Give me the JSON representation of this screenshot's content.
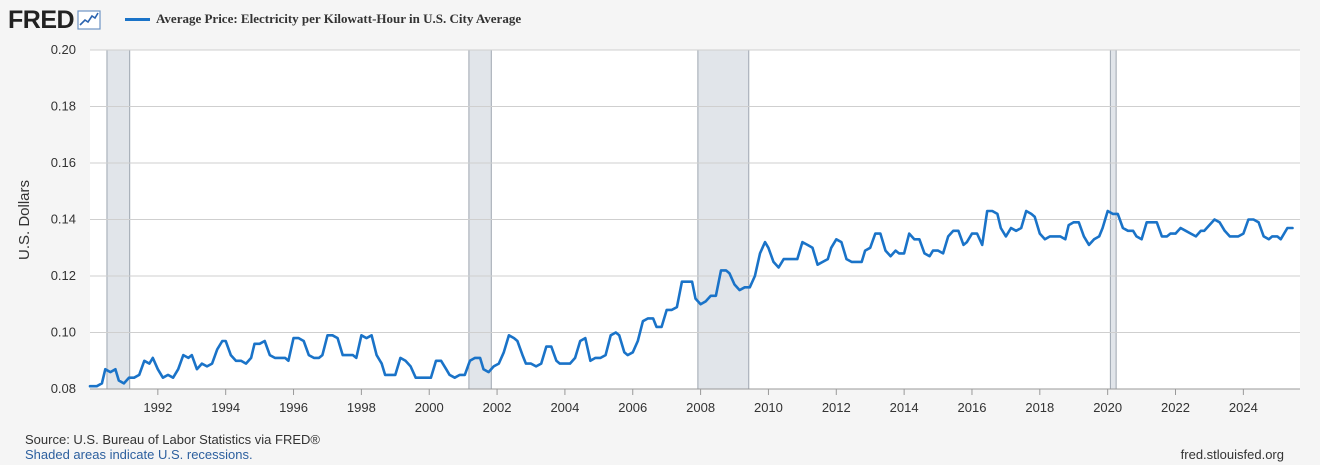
{
  "header": {
    "logo_text": "FRED",
    "logo_icon": "line-chart-icon",
    "legend_label": "Average Price: Electricity per Kilowatt-Hour in U.S. City Average",
    "series_color": "#1a73c8"
  },
  "footer": {
    "source": "U.S. Bureau of Labor Statistics via FRED®",
    "source_prefix": "Source: ",
    "recession_note": "Shaded areas indicate U.S. recessions.",
    "site": "fred.stlouisfed.org"
  },
  "chart_data": {
    "type": "line",
    "title": "Average Price: Electricity per Kilowatt-Hour in U.S. City Average",
    "xlabel": "",
    "ylabel": "U.S. Dollars",
    "xlim": [
      1990.0,
      2025.67
    ],
    "ylim": [
      0.08,
      0.2
    ],
    "x_ticks": [
      "1992",
      "1994",
      "1996",
      "1998",
      "2000",
      "2002",
      "2004",
      "2006",
      "2008",
      "2010",
      "2012",
      "2014",
      "2016",
      "2018",
      "2020",
      "2022",
      "2024"
    ],
    "y_ticks": [
      "0.08",
      "0.10",
      "0.12",
      "0.14",
      "0.16",
      "0.18",
      "0.20"
    ],
    "grid": true,
    "recessions": [
      [
        1990.5,
        1991.17
      ],
      [
        2001.17,
        2001.83
      ],
      [
        2007.92,
        2009.42
      ],
      [
        2020.08,
        2020.25
      ]
    ],
    "series": [
      {
        "name": "Average Price: Electricity per Kilowatt-Hour in U.S. City Average",
        "color": "#1a73c8",
        "points": [
          [
            1990.0,
            0.081
          ],
          [
            1990.2,
            0.081
          ],
          [
            1990.35,
            0.082
          ],
          [
            1990.45,
            0.087
          ],
          [
            1990.6,
            0.086
          ],
          [
            1990.75,
            0.087
          ],
          [
            1990.85,
            0.083
          ],
          [
            1991.0,
            0.082
          ],
          [
            1991.15,
            0.084
          ],
          [
            1991.3,
            0.084
          ],
          [
            1991.45,
            0.085
          ],
          [
            1991.6,
            0.09
          ],
          [
            1991.75,
            0.089
          ],
          [
            1991.85,
            0.091
          ],
          [
            1992.0,
            0.087
          ],
          [
            1992.15,
            0.084
          ],
          [
            1992.3,
            0.085
          ],
          [
            1992.45,
            0.084
          ],
          [
            1992.6,
            0.087
          ],
          [
            1992.75,
            0.092
          ],
          [
            1992.9,
            0.091
          ],
          [
            1993.0,
            0.092
          ],
          [
            1993.15,
            0.087
          ],
          [
            1993.3,
            0.089
          ],
          [
            1993.45,
            0.088
          ],
          [
            1993.6,
            0.089
          ],
          [
            1993.75,
            0.094
          ],
          [
            1993.9,
            0.097
          ],
          [
            1994.0,
            0.097
          ],
          [
            1994.15,
            0.092
          ],
          [
            1994.3,
            0.09
          ],
          [
            1994.45,
            0.09
          ],
          [
            1994.6,
            0.089
          ],
          [
            1994.75,
            0.091
          ],
          [
            1994.85,
            0.096
          ],
          [
            1995.0,
            0.096
          ],
          [
            1995.15,
            0.097
          ],
          [
            1995.3,
            0.092
          ],
          [
            1995.45,
            0.091
          ],
          [
            1995.6,
            0.091
          ],
          [
            1995.75,
            0.091
          ],
          [
            1995.85,
            0.09
          ],
          [
            1996.0,
            0.098
          ],
          [
            1996.15,
            0.098
          ],
          [
            1996.3,
            0.097
          ],
          [
            1996.45,
            0.092
          ],
          [
            1996.6,
            0.091
          ],
          [
            1996.75,
            0.091
          ],
          [
            1996.85,
            0.092
          ],
          [
            1997.0,
            0.099
          ],
          [
            1997.15,
            0.099
          ],
          [
            1997.3,
            0.098
          ],
          [
            1997.45,
            0.092
          ],
          [
            1997.6,
            0.092
          ],
          [
            1997.75,
            0.092
          ],
          [
            1997.85,
            0.091
          ],
          [
            1998.0,
            0.099
          ],
          [
            1998.15,
            0.098
          ],
          [
            1998.3,
            0.099
          ],
          [
            1998.45,
            0.092
          ],
          [
            1998.6,
            0.089
          ],
          [
            1998.7,
            0.085
          ],
          [
            1998.85,
            0.085
          ],
          [
            1999.0,
            0.085
          ],
          [
            1999.15,
            0.091
          ],
          [
            1999.3,
            0.09
          ],
          [
            1999.45,
            0.088
          ],
          [
            1999.6,
            0.084
          ],
          [
            1999.75,
            0.084
          ],
          [
            1999.9,
            0.084
          ],
          [
            2000.05,
            0.084
          ],
          [
            2000.2,
            0.09
          ],
          [
            2000.35,
            0.09
          ],
          [
            2000.5,
            0.087
          ],
          [
            2000.6,
            0.085
          ],
          [
            2000.75,
            0.084
          ],
          [
            2000.9,
            0.085
          ],
          [
            2001.05,
            0.085
          ],
          [
            2001.2,
            0.09
          ],
          [
            2001.35,
            0.091
          ],
          [
            2001.5,
            0.091
          ],
          [
            2001.6,
            0.087
          ],
          [
            2001.75,
            0.086
          ],
          [
            2001.9,
            0.088
          ],
          [
            2002.05,
            0.089
          ],
          [
            2002.2,
            0.093
          ],
          [
            2002.35,
            0.099
          ],
          [
            2002.5,
            0.098
          ],
          [
            2002.6,
            0.097
          ],
          [
            2002.75,
            0.092
          ],
          [
            2002.85,
            0.089
          ],
          [
            2003.0,
            0.089
          ],
          [
            2003.15,
            0.088
          ],
          [
            2003.3,
            0.089
          ],
          [
            2003.45,
            0.095
          ],
          [
            2003.6,
            0.095
          ],
          [
            2003.75,
            0.09
          ],
          [
            2003.85,
            0.089
          ],
          [
            2004.0,
            0.089
          ],
          [
            2004.15,
            0.089
          ],
          [
            2004.3,
            0.091
          ],
          [
            2004.45,
            0.097
          ],
          [
            2004.6,
            0.098
          ],
          [
            2004.75,
            0.09
          ],
          [
            2004.9,
            0.091
          ],
          [
            2005.05,
            0.091
          ],
          [
            2005.2,
            0.092
          ],
          [
            2005.35,
            0.099
          ],
          [
            2005.5,
            0.1
          ],
          [
            2005.6,
            0.099
          ],
          [
            2005.75,
            0.093
          ],
          [
            2005.85,
            0.092
          ],
          [
            2006.0,
            0.093
          ],
          [
            2006.15,
            0.097
          ],
          [
            2006.3,
            0.104
          ],
          [
            2006.45,
            0.105
          ],
          [
            2006.6,
            0.105
          ],
          [
            2006.7,
            0.102
          ],
          [
            2006.85,
            0.102
          ],
          [
            2007.0,
            0.108
          ],
          [
            2007.15,
            0.108
          ],
          [
            2007.3,
            0.109
          ],
          [
            2007.45,
            0.118
          ],
          [
            2007.6,
            0.118
          ],
          [
            2007.75,
            0.118
          ],
          [
            2007.85,
            0.112
          ],
          [
            2008.0,
            0.11
          ],
          [
            2008.15,
            0.111
          ],
          [
            2008.3,
            0.113
          ],
          [
            2008.45,
            0.113
          ],
          [
            2008.6,
            0.122
          ],
          [
            2008.75,
            0.122
          ],
          [
            2008.85,
            0.121
          ],
          [
            2009.0,
            0.117
          ],
          [
            2009.15,
            0.115
          ],
          [
            2009.3,
            0.116
          ],
          [
            2009.45,
            0.116
          ],
          [
            2009.6,
            0.12
          ],
          [
            2009.75,
            0.128
          ],
          [
            2009.9,
            0.132
          ],
          [
            2010.0,
            0.13
          ],
          [
            2010.15,
            0.125
          ],
          [
            2010.3,
            0.123
          ],
          [
            2010.45,
            0.126
          ],
          [
            2010.6,
            0.126
          ],
          [
            2010.75,
            0.126
          ],
          [
            2010.85,
            0.126
          ],
          [
            2011.0,
            0.132
          ],
          [
            2011.15,
            0.131
          ],
          [
            2011.3,
            0.13
          ],
          [
            2011.45,
            0.124
          ],
          [
            2011.6,
            0.125
          ],
          [
            2011.75,
            0.126
          ],
          [
            2011.85,
            0.13
          ],
          [
            2012.0,
            0.133
          ],
          [
            2012.15,
            0.132
          ],
          [
            2012.3,
            0.126
          ],
          [
            2012.45,
            0.125
          ],
          [
            2012.6,
            0.125
          ],
          [
            2012.75,
            0.125
          ],
          [
            2012.85,
            0.129
          ],
          [
            2013.0,
            0.13
          ],
          [
            2013.15,
            0.135
          ],
          [
            2013.3,
            0.135
          ],
          [
            2013.45,
            0.129
          ],
          [
            2013.6,
            0.127
          ],
          [
            2013.75,
            0.129
          ],
          [
            2013.85,
            0.128
          ],
          [
            2014.0,
            0.128
          ],
          [
            2014.15,
            0.135
          ],
          [
            2014.3,
            0.133
          ],
          [
            2014.45,
            0.133
          ],
          [
            2014.6,
            0.128
          ],
          [
            2014.75,
            0.127
          ],
          [
            2014.85,
            0.129
          ],
          [
            2015.0,
            0.129
          ],
          [
            2015.15,
            0.128
          ],
          [
            2015.3,
            0.134
          ],
          [
            2015.45,
            0.136
          ],
          [
            2015.6,
            0.136
          ],
          [
            2015.75,
            0.131
          ],
          [
            2015.85,
            0.132
          ],
          [
            2016.0,
            0.135
          ],
          [
            2016.15,
            0.135
          ],
          [
            2016.3,
            0.131
          ],
          [
            2016.45,
            0.143
          ],
          [
            2016.6,
            0.143
          ],
          [
            2016.75,
            0.142
          ],
          [
            2016.85,
            0.137
          ],
          [
            2017.0,
            0.134
          ],
          [
            2017.15,
            0.137
          ],
          [
            2017.3,
            0.136
          ],
          [
            2017.45,
            0.137
          ],
          [
            2017.6,
            0.143
          ],
          [
            2017.75,
            0.142
          ],
          [
            2017.85,
            0.141
          ],
          [
            2018.0,
            0.135
          ],
          [
            2018.15,
            0.133
          ],
          [
            2018.3,
            0.134
          ],
          [
            2018.45,
            0.134
          ],
          [
            2018.6,
            0.134
          ],
          [
            2018.75,
            0.133
          ],
          [
            2018.85,
            0.138
          ],
          [
            2019.0,
            0.139
          ],
          [
            2019.15,
            0.139
          ],
          [
            2019.3,
            0.134
          ],
          [
            2019.45,
            0.131
          ],
          [
            2019.6,
            0.133
          ],
          [
            2019.75,
            0.134
          ],
          [
            2019.85,
            0.137
          ],
          [
            2020.0,
            0.143
          ],
          [
            2020.15,
            0.142
          ],
          [
            2020.3,
            0.142
          ],
          [
            2020.45,
            0.137
          ],
          [
            2020.6,
            0.136
          ],
          [
            2020.75,
            0.136
          ],
          [
            2020.85,
            0.134
          ],
          [
            2021.0,
            0.133
          ],
          [
            2021.15,
            0.139
          ],
          [
            2021.3,
            0.139
          ],
          [
            2021.45,
            0.139
          ],
          [
            2021.6,
            0.134
          ],
          [
            2021.75,
            0.134
          ],
          [
            2021.85,
            0.135
          ],
          [
            2022.0,
            0.135
          ],
          [
            2022.15,
            0.137
          ],
          [
            2022.3,
            0.136
          ],
          [
            2022.45,
            0.135
          ],
          [
            2022.6,
            0.134
          ],
          [
            2022.75,
            0.136
          ],
          [
            2022.85,
            0.136
          ],
          [
            2023.0,
            0.138
          ],
          [
            2023.15,
            0.14
          ],
          [
            2023.3,
            0.139
          ],
          [
            2023.45,
            0.136
          ],
          [
            2023.6,
            0.134
          ],
          [
            2023.75,
            0.134
          ],
          [
            2023.85,
            0.134
          ],
          [
            2024.0,
            0.135
          ],
          [
            2024.15,
            0.14
          ],
          [
            2024.3,
            0.14
          ],
          [
            2024.45,
            0.139
          ],
          [
            2024.6,
            0.134
          ],
          [
            2024.75,
            0.133
          ],
          [
            2024.85,
            0.134
          ],
          [
            2025.0,
            0.134
          ],
          [
            2025.1,
            0.133
          ],
          [
            2025.3,
            0.137
          ],
          [
            2025.45,
            0.137
          ]
        ]
      }
    ]
  }
}
